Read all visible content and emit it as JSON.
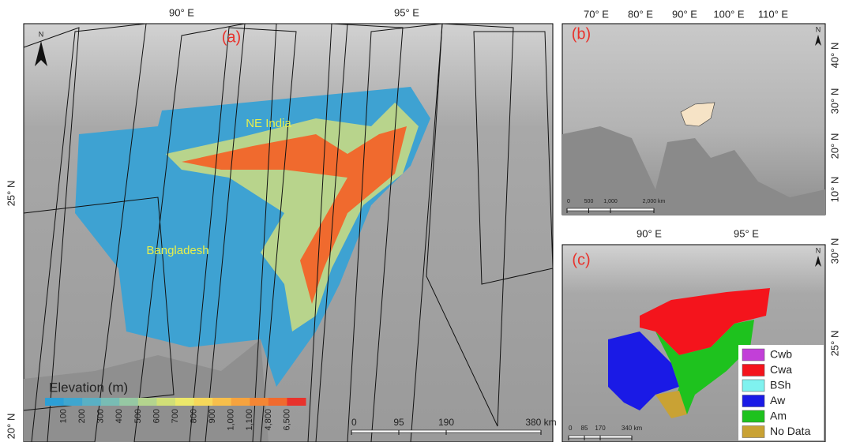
{
  "panel_a": {
    "tag": "(a)",
    "north": "N",
    "top_labels": [
      "90° E",
      "95° E"
    ],
    "left_labels": [
      "25° N",
      "20° N"
    ],
    "places": [
      "NE India",
      "Bangladesh"
    ],
    "legend": {
      "title": "Elevation (m)",
      "labels": [
        "100",
        "200",
        "300",
        "400",
        "500",
        "600",
        "700",
        "800",
        "900",
        "1,000",
        "1,100",
        "4,800",
        "6,500"
      ],
      "colors": [
        "#2c9fd6",
        "#3fa6cf",
        "#5ab0c4",
        "#78bcb4",
        "#96c8a3",
        "#b4d48e",
        "#d1df77",
        "#ece86a",
        "#f6d85a",
        "#f7bf4b",
        "#f6a33e",
        "#f48634",
        "#f06a2e",
        "#e8322c"
      ]
    },
    "scale": [
      "0",
      "95",
      "190",
      "380 km"
    ]
  },
  "panel_b": {
    "tag": "(b)",
    "north": "N",
    "top_labels": [
      "70° E",
      "80° E",
      "90° E",
      "100° E",
      "110° E"
    ],
    "right_labels": [
      "40° N",
      "30° N",
      "20° N",
      "10° N"
    ],
    "scale": [
      "0",
      "500",
      "1,000",
      "2,000 km"
    ]
  },
  "panel_c": {
    "tag": "(c)",
    "north": "N",
    "top_labels": [
      "90° E",
      "95° E"
    ],
    "right_labels": [
      "30° N",
      "25° N"
    ],
    "legend": [
      {
        "label": "Cwb",
        "color": "#c23fd8"
      },
      {
        "label": "Cwa",
        "color": "#f4141c"
      },
      {
        "label": "BSh",
        "color": "#7ff2ef"
      },
      {
        "label": "Aw",
        "color": "#1a1ae6"
      },
      {
        "label": "Am",
        "color": "#1ec21e"
      },
      {
        "label": "No Data",
        "color": "#c9a234"
      }
    ],
    "scale": [
      "0",
      "85",
      "170",
      "340 km"
    ]
  }
}
